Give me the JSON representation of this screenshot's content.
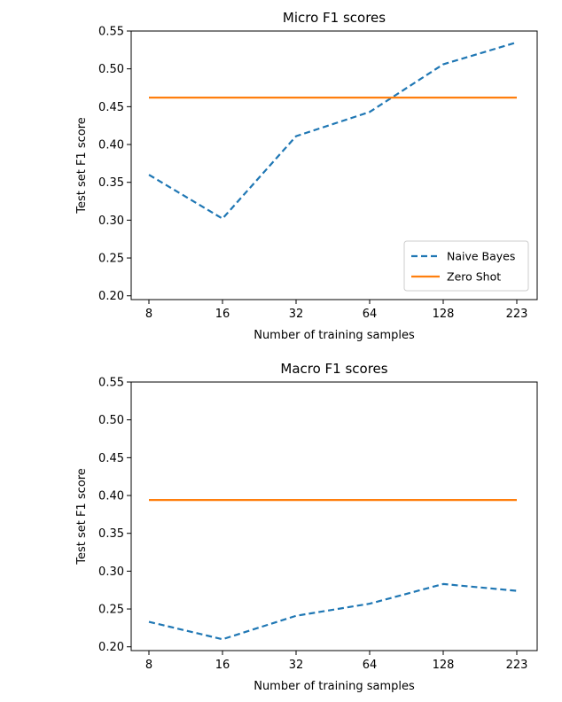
{
  "chart_data": [
    {
      "type": "line",
      "title": "Micro F1 scores",
      "xlabel": "Number of training samples",
      "ylabel": "Test set F1 score",
      "categories": [
        "8",
        "16",
        "32",
        "64",
        "128",
        "223"
      ],
      "ylim": [
        0.195,
        0.55
      ],
      "yticks": [
        "0.20",
        "0.25",
        "0.30",
        "0.35",
        "0.40",
        "0.45",
        "0.50",
        "0.55"
      ],
      "grid": false,
      "legend_position": "lower-right",
      "series": [
        {
          "name": "Naive Bayes",
          "style": "dashed",
          "color": "#1f77b4",
          "values": [
            0.36,
            0.302,
            0.411,
            0.443,
            0.506,
            0.535
          ]
        },
        {
          "name": "Zero Shot",
          "style": "solid",
          "color": "#ff7f0e",
          "values": [
            0.462,
            0.462,
            0.462,
            0.462,
            0.462,
            0.462
          ]
        }
      ]
    },
    {
      "type": "line",
      "title": "Macro F1 scores",
      "xlabel": "Number of training samples",
      "ylabel": "Test set F1 score",
      "categories": [
        "8",
        "16",
        "32",
        "64",
        "128",
        "223"
      ],
      "ylim": [
        0.195,
        0.55
      ],
      "yticks": [
        "0.20",
        "0.25",
        "0.30",
        "0.35",
        "0.40",
        "0.45",
        "0.50",
        "0.55"
      ],
      "grid": false,
      "legend_position": "",
      "series": [
        {
          "style": "dashed",
          "color": "#1f77b4",
          "values": [
            0.233,
            0.21,
            0.241,
            0.257,
            0.283,
            0.274
          ]
        },
        {
          "style": "solid",
          "color": "#ff7f0e",
          "values": [
            0.394,
            0.394,
            0.394,
            0.394,
            0.394,
            0.394
          ]
        }
      ]
    }
  ]
}
